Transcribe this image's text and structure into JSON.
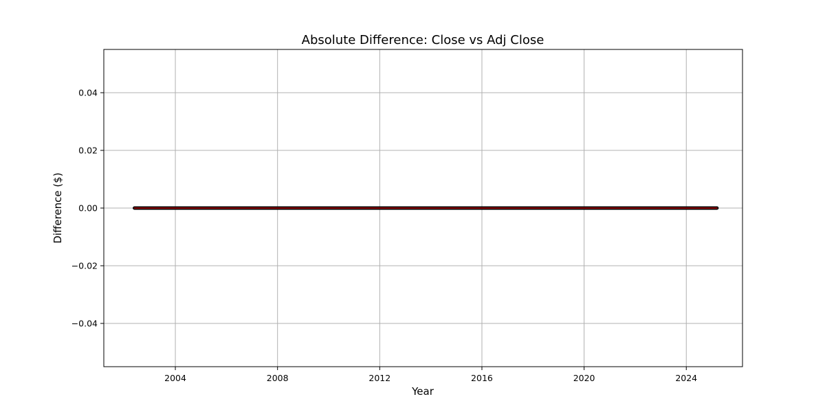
{
  "chart_data": {
    "type": "line",
    "title": "Absolute Difference: Close vs Adj Close",
    "xlabel": "Year",
    "ylabel": "Difference ($)",
    "x_range": [
      2001.2,
      2026.2
    ],
    "ylim": [
      -0.055,
      0.055
    ],
    "x_ticks": [
      2004,
      2008,
      2012,
      2016,
      2020,
      2024
    ],
    "x_tick_labels": [
      "2004",
      "2008",
      "2012",
      "2016",
      "2020",
      "2024"
    ],
    "y_ticks": [
      -0.04,
      -0.02,
      0.0,
      0.02,
      0.04
    ],
    "y_tick_labels": [
      "−0.04",
      "−0.02",
      "0.00",
      "0.02",
      "0.04"
    ],
    "grid": true,
    "series": [
      {
        "color": "#8b0000",
        "x": [
          2002.4,
          2025.2
        ],
        "values": [
          0.0,
          0.0
        ]
      }
    ]
  }
}
